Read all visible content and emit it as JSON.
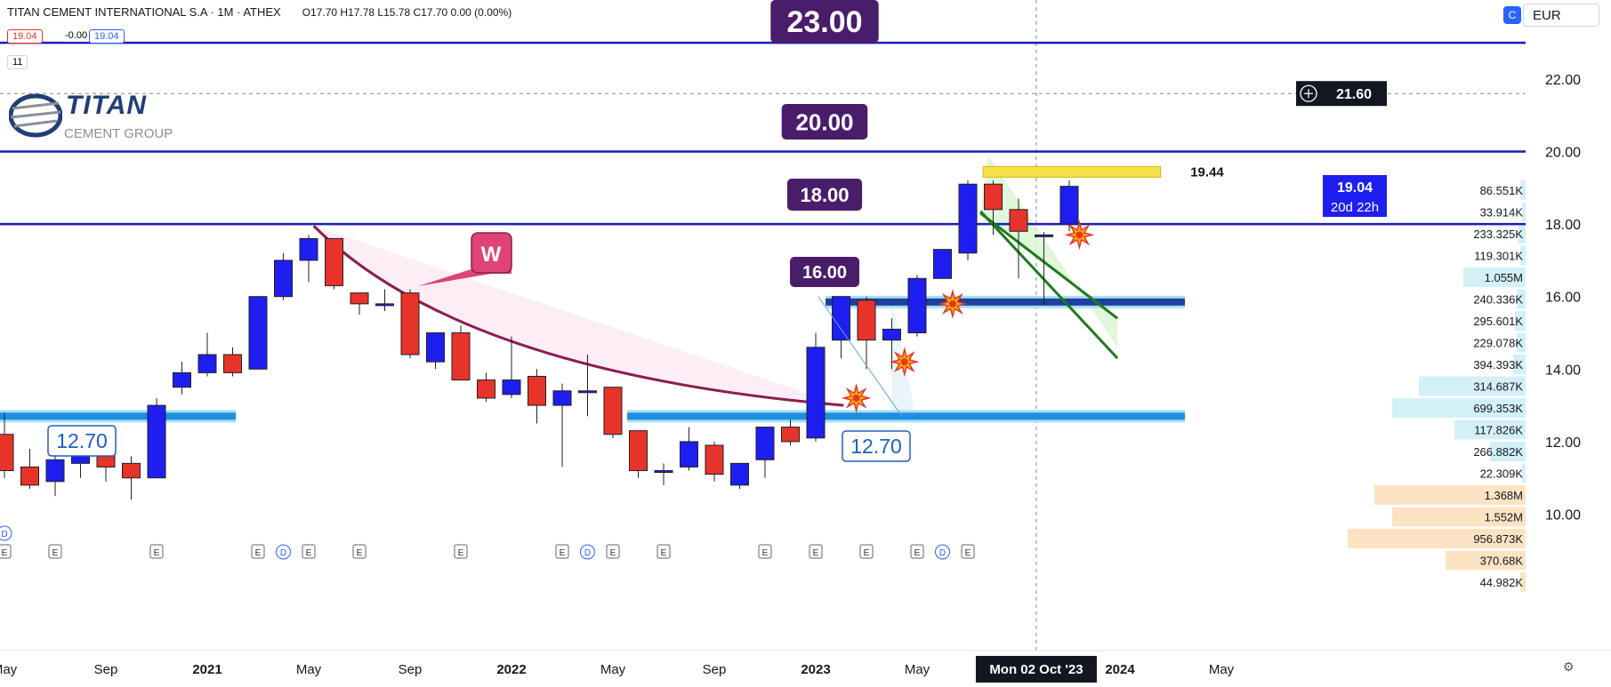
{
  "header": {
    "symbol": "TITAN CEMENT INTERNATIONAL S.A · 1M · ATHEX",
    "ohlc": "O17.70 H17.78 L15.78 C17.70 0.00 (0.00%)",
    "bid": "19.04",
    "spread": "-0.00",
    "ask": "19.04",
    "indicator_count": "11",
    "currency": "EUR",
    "logo_text": "TITAN",
    "logo_sub": "CEMENT GROUP"
  },
  "colors": {
    "up": "#1e1ef0",
    "down": "#e8332a",
    "level": "#1b1bbd",
    "zone": "#1e8ee0",
    "arc": "#8b1d4f",
    "channel": "#1e7a1e",
    "label_bg": "#4a1d6b"
  },
  "chart_data": {
    "type": "candlestick",
    "title": "TITAN CEMENT INTERNATIONAL S.A",
    "interval": "1M",
    "exchange": "ATHEX",
    "y_axis": {
      "ticks": [
        "10.00",
        "12.00",
        "14.00",
        "16.00",
        "18.00",
        "20.00",
        "22.00"
      ],
      "range": [
        9.6,
        24.0
      ]
    },
    "x_axis": {
      "labels": [
        "May",
        "Sep",
        "2021",
        "May",
        "Sep",
        "2022",
        "May",
        "Sep",
        "2023",
        "May",
        "Sep",
        "2024",
        "May"
      ],
      "label_index": [
        0,
        4,
        8,
        12,
        16,
        20,
        24,
        28,
        32,
        36,
        40,
        44,
        48
      ]
    },
    "candles": [
      {
        "i": 0,
        "o": 12.2,
        "h": 12.8,
        "l": 11.0,
        "c": 11.2
      },
      {
        "i": 1,
        "o": 11.3,
        "h": 11.8,
        "l": 10.7,
        "c": 10.8
      },
      {
        "i": 2,
        "o": 10.9,
        "h": 11.6,
        "l": 10.5,
        "c": 11.5
      },
      {
        "i": 3,
        "o": 11.4,
        "h": 11.7,
        "l": 11.0,
        "c": 11.6
      },
      {
        "i": 4,
        "o": 11.6,
        "h": 11.8,
        "l": 10.9,
        "c": 11.3
      },
      {
        "i": 5,
        "o": 11.4,
        "h": 11.6,
        "l": 10.4,
        "c": 11.0
      },
      {
        "i": 6,
        "o": 11.0,
        "h": 13.2,
        "l": 11.0,
        "c": 13.0
      },
      {
        "i": 7,
        "o": 13.5,
        "h": 14.2,
        "l": 13.3,
        "c": 13.9
      },
      {
        "i": 8,
        "o": 13.9,
        "h": 15.0,
        "l": 13.8,
        "c": 14.4
      },
      {
        "i": 9,
        "o": 14.4,
        "h": 14.6,
        "l": 13.8,
        "c": 13.9
      },
      {
        "i": 10,
        "o": 14.0,
        "h": 16.0,
        "l": 14.0,
        "c": 16.0
      },
      {
        "i": 11,
        "o": 16.0,
        "h": 17.2,
        "l": 15.9,
        "c": 17.0
      },
      {
        "i": 12,
        "o": 17.0,
        "h": 17.7,
        "l": 16.4,
        "c": 17.6
      },
      {
        "i": 13,
        "o": 17.6,
        "h": 17.6,
        "l": 16.2,
        "c": 16.3
      },
      {
        "i": 14,
        "o": 16.1,
        "h": 16.1,
        "l": 15.5,
        "c": 15.8
      },
      {
        "i": 15,
        "o": 15.8,
        "h": 16.2,
        "l": 15.6,
        "c": 15.8
      },
      {
        "i": 16,
        "o": 16.1,
        "h": 16.2,
        "l": 14.3,
        "c": 14.4
      },
      {
        "i": 17,
        "o": 14.2,
        "h": 15.0,
        "l": 14.0,
        "c": 15.0
      },
      {
        "i": 18,
        "o": 15.0,
        "h": 15.2,
        "l": 13.7,
        "c": 13.7
      },
      {
        "i": 19,
        "o": 13.7,
        "h": 13.9,
        "l": 13.1,
        "c": 13.2
      },
      {
        "i": 20,
        "o": 13.3,
        "h": 14.9,
        "l": 13.2,
        "c": 13.7
      },
      {
        "i": 21,
        "o": 13.8,
        "h": 14.0,
        "l": 12.5,
        "c": 13.0
      },
      {
        "i": 22,
        "o": 13.0,
        "h": 13.6,
        "l": 11.3,
        "c": 13.4
      },
      {
        "i": 23,
        "o": 13.4,
        "h": 14.4,
        "l": 12.7,
        "c": 13.4
      },
      {
        "i": 24,
        "o": 13.5,
        "h": 13.5,
        "l": 12.1,
        "c": 12.2
      },
      {
        "i": 25,
        "o": 12.3,
        "h": 12.3,
        "l": 11.0,
        "c": 11.2
      },
      {
        "i": 26,
        "o": 11.2,
        "h": 11.4,
        "l": 10.8,
        "c": 11.2
      },
      {
        "i": 27,
        "o": 11.3,
        "h": 12.4,
        "l": 11.2,
        "c": 12.0
      },
      {
        "i": 28,
        "o": 11.9,
        "h": 12.0,
        "l": 10.9,
        "c": 11.1
      },
      {
        "i": 29,
        "o": 10.8,
        "h": 11.4,
        "l": 10.7,
        "c": 11.4
      },
      {
        "i": 30,
        "o": 11.5,
        "h": 12.4,
        "l": 11.0,
        "c": 12.4
      },
      {
        "i": 31,
        "o": 12.4,
        "h": 12.6,
        "l": 11.9,
        "c": 12.0
      },
      {
        "i": 32,
        "o": 12.1,
        "h": 15.0,
        "l": 12.0,
        "c": 14.6
      },
      {
        "i": 33,
        "o": 14.8,
        "h": 16.0,
        "l": 14.3,
        "c": 16.0
      },
      {
        "i": 34,
        "o": 15.9,
        "h": 16.0,
        "l": 14.0,
        "c": 14.8
      },
      {
        "i": 35,
        "o": 14.8,
        "h": 15.4,
        "l": 14.0,
        "c": 15.1
      },
      {
        "i": 36,
        "o": 15.0,
        "h": 16.6,
        "l": 14.9,
        "c": 16.5
      },
      {
        "i": 37,
        "o": 16.5,
        "h": 17.3,
        "l": 16.5,
        "c": 17.3
      },
      {
        "i": 38,
        "o": 17.2,
        "h": 19.2,
        "l": 17.0,
        "c": 19.1
      },
      {
        "i": 39,
        "o": 19.1,
        "h": 19.2,
        "l": 17.7,
        "c": 18.4
      },
      {
        "i": 40,
        "o": 18.4,
        "h": 18.7,
        "l": 16.5,
        "c": 17.8
      },
      {
        "i": 41,
        "o": 17.7,
        "h": 17.78,
        "l": 15.78,
        "c": 17.7
      },
      {
        "i": 42,
        "o": 18.0,
        "h": 19.2,
        "l": 17.8,
        "c": 19.04
      }
    ],
    "horizontal_levels": [
      {
        "price": 23.0,
        "label": "23.00"
      },
      {
        "price": 20.0,
        "label": "20.00"
      },
      {
        "price": 18.0,
        "label": "18.00"
      }
    ],
    "callouts": [
      {
        "price": 16.0,
        "label": "16.00"
      },
      {
        "price": 12.7,
        "label": "12.70"
      },
      {
        "price": 12.7,
        "label": "12.70"
      }
    ],
    "zones": [
      {
        "price": 12.7,
        "label": "zone-left"
      },
      {
        "price": 12.7,
        "label": "zone-right"
      },
      {
        "price": 15.85,
        "label": "zone-upper"
      }
    ],
    "target_label": "19.44",
    "target_price": 19.44,
    "pattern_label": "W",
    "last_price": "19.04",
    "countdown": "20d 22h",
    "crosshair_price": "21.60",
    "crosshair_date": "Mon 02 Oct '23",
    "volume_profile": [
      {
        "price": 19.8,
        "label": "86.551K",
        "w": 0.03
      },
      {
        "price": 19.0,
        "label": "33.914K",
        "w": 0.02
      },
      {
        "price": 18.2,
        "label": "233.325K",
        "w": 0.04
      },
      {
        "price": 17.4,
        "label": "119.301K",
        "w": 0.03
      },
      {
        "price": 16.6,
        "label": "1.055M",
        "w": 0.35
      },
      {
        "price": 15.8,
        "label": "240.336K",
        "w": 0.05
      },
      {
        "price": 15.0,
        "label": "295.601K",
        "w": 0.06
      },
      {
        "price": 14.2,
        "label": "229.078K",
        "w": 0.05
      },
      {
        "price": 13.4,
        "label": "394.393K",
        "w": 0.07
      },
      {
        "price": 12.6,
        "label": "314.687K",
        "w": 0.6
      },
      {
        "price": 11.8,
        "label": "699.353K",
        "w": 0.75
      },
      {
        "price": 11.0,
        "label": "117.826K",
        "w": 0.4
      },
      {
        "price": 10.2,
        "label": "266.882K",
        "w": 0.2
      },
      {
        "price": 9.4,
        "label": "22.309K",
        "w": 0.02
      },
      {
        "price": 8.6,
        "label": "1.368M",
        "w": 0.85
      },
      {
        "price": 7.8,
        "label": "1.552M",
        "w": 0.75
      },
      {
        "price": 7.0,
        "label": "956.873K",
        "w": 1.0
      },
      {
        "price": 6.2,
        "label": "370.68K",
        "w": 0.45
      },
      {
        "price": 5.4,
        "label": "44.982K",
        "w": 0.03
      }
    ],
    "event_markers": [
      {
        "i": 0,
        "t": "D"
      },
      {
        "i": 0,
        "t": "E"
      },
      {
        "i": 2,
        "t": "E"
      },
      {
        "i": 6,
        "t": "E"
      },
      {
        "i": 10,
        "t": "E"
      },
      {
        "i": 11,
        "t": "D"
      },
      {
        "i": 12,
        "t": "E"
      },
      {
        "i": 14,
        "t": "E"
      },
      {
        "i": 18,
        "t": "E"
      },
      {
        "i": 22,
        "t": "E"
      },
      {
        "i": 23,
        "t": "D"
      },
      {
        "i": 24,
        "t": "E"
      },
      {
        "i": 26,
        "t": "E"
      },
      {
        "i": 30,
        "t": "E"
      },
      {
        "i": 32,
        "t": "E"
      },
      {
        "i": 34,
        "t": "E"
      },
      {
        "i": 36,
        "t": "E"
      },
      {
        "i": 37,
        "t": "D"
      },
      {
        "i": 38,
        "t": "E"
      }
    ]
  }
}
